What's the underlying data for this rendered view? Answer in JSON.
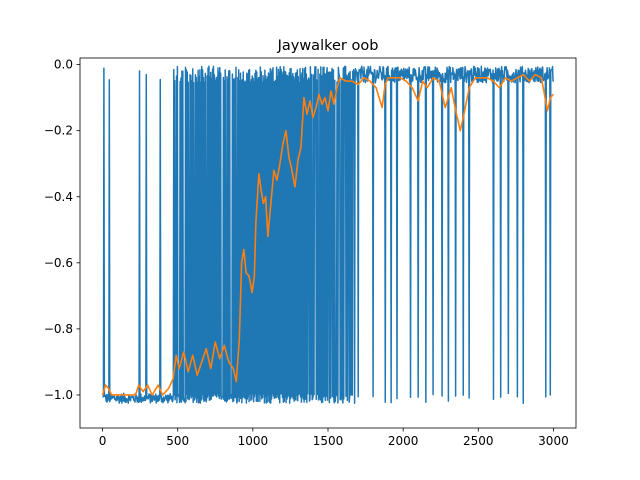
{
  "chart_data": {
    "type": "line",
    "title": "Jaywalker oob",
    "xlabel": "",
    "ylabel": "",
    "xlim": [
      -150,
      3150
    ],
    "ylim": [
      -1.1,
      0.02
    ],
    "xticks": [
      0,
      500,
      1000,
      1500,
      2000,
      2500,
      3000
    ],
    "yticks": [
      -1.0,
      -0.8,
      -0.6,
      -0.4,
      -0.2,
      0.0
    ],
    "xtick_labels": [
      "0",
      "500",
      "1000",
      "1500",
      "2000",
      "2500",
      "3000"
    ],
    "ytick_labels": [
      "−1.0",
      "−0.8",
      "−0.6",
      "−0.4",
      "−0.2",
      "0.0"
    ],
    "grid": false,
    "legend": "none",
    "series": [
      {
        "color": "#1f77b4",
        "style": "raw",
        "x_range": [
          0,
          3000
        ],
        "phases": [
          {
            "x_from": 0,
            "x_to": 460,
            "mode": "mostly_low",
            "low": -1.01,
            "high": -0.02
          },
          {
            "x_from": 460,
            "x_to": 1360,
            "mode": "dense_oscillation",
            "low": -1.01,
            "high": -0.02
          },
          {
            "x_from": 1360,
            "x_to": 3000,
            "mode": "mostly_high",
            "low": -1.01,
            "high": -0.02
          }
        ],
        "spikes_up": [
          10,
          45,
          245,
          290,
          385
        ],
        "spikes_down_sample": [
          1380,
          1450,
          1530,
          1600,
          1700,
          1800,
          1880,
          1920,
          1960,
          2050,
          2100,
          2150,
          2200,
          2260,
          2300,
          2350,
          2400,
          2440,
          2600,
          2650,
          2700,
          2760,
          2800,
          2950,
          2980
        ]
      },
      {
        "color": "#ff7f0e",
        "style": "rolling_mean",
        "points": [
          [
            0,
            -1.0
          ],
          [
            20,
            -0.97
          ],
          [
            40,
            -0.98
          ],
          [
            60,
            -1.0
          ],
          [
            100,
            -1.0
          ],
          [
            160,
            -1.0
          ],
          [
            220,
            -1.0
          ],
          [
            240,
            -0.97
          ],
          [
            270,
            -0.99
          ],
          [
            300,
            -0.97
          ],
          [
            330,
            -1.0
          ],
          [
            370,
            -0.97
          ],
          [
            400,
            -1.0
          ],
          [
            440,
            -0.98
          ],
          [
            470,
            -0.95
          ],
          [
            490,
            -0.88
          ],
          [
            510,
            -0.92
          ],
          [
            540,
            -0.87
          ],
          [
            570,
            -0.93
          ],
          [
            600,
            -0.88
          ],
          [
            630,
            -0.94
          ],
          [
            660,
            -0.9
          ],
          [
            690,
            -0.86
          ],
          [
            720,
            -0.92
          ],
          [
            750,
            -0.84
          ],
          [
            780,
            -0.89
          ],
          [
            810,
            -0.85
          ],
          [
            840,
            -0.9
          ],
          [
            870,
            -0.92
          ],
          [
            890,
            -0.96
          ],
          [
            910,
            -0.83
          ],
          [
            925,
            -0.6
          ],
          [
            940,
            -0.56
          ],
          [
            955,
            -0.63
          ],
          [
            975,
            -0.64
          ],
          [
            995,
            -0.69
          ],
          [
            1010,
            -0.64
          ],
          [
            1020,
            -0.48
          ],
          [
            1040,
            -0.33
          ],
          [
            1055,
            -0.38
          ],
          [
            1070,
            -0.42
          ],
          [
            1085,
            -0.4
          ],
          [
            1100,
            -0.52
          ],
          [
            1120,
            -0.42
          ],
          [
            1140,
            -0.32
          ],
          [
            1160,
            -0.35
          ],
          [
            1180,
            -0.3
          ],
          [
            1200,
            -0.24
          ],
          [
            1220,
            -0.2
          ],
          [
            1240,
            -0.28
          ],
          [
            1260,
            -0.32
          ],
          [
            1280,
            -0.37
          ],
          [
            1300,
            -0.29
          ],
          [
            1320,
            -0.25
          ],
          [
            1340,
            -0.1
          ],
          [
            1360,
            -0.15
          ],
          [
            1380,
            -0.11
          ],
          [
            1400,
            -0.16
          ],
          [
            1420,
            -0.13
          ],
          [
            1440,
            -0.09
          ],
          [
            1460,
            -0.12
          ],
          [
            1480,
            -0.1
          ],
          [
            1500,
            -0.14
          ],
          [
            1520,
            -0.08
          ],
          [
            1540,
            -0.12
          ],
          [
            1560,
            -0.07
          ],
          [
            1580,
            -0.04
          ],
          [
            1620,
            -0.05
          ],
          [
            1660,
            -0.05
          ],
          [
            1700,
            -0.06
          ],
          [
            1740,
            -0.04
          ],
          [
            1780,
            -0.05
          ],
          [
            1820,
            -0.07
          ],
          [
            1860,
            -0.13
          ],
          [
            1880,
            -0.06
          ],
          [
            1900,
            -0.04
          ],
          [
            1940,
            -0.04
          ],
          [
            1980,
            -0.04
          ],
          [
            2020,
            -0.05
          ],
          [
            2060,
            -0.07
          ],
          [
            2100,
            -0.11
          ],
          [
            2130,
            -0.05
          ],
          [
            2160,
            -0.07
          ],
          [
            2200,
            -0.04
          ],
          [
            2240,
            -0.05
          ],
          [
            2280,
            -0.13
          ],
          [
            2300,
            -0.1
          ],
          [
            2320,
            -0.07
          ],
          [
            2350,
            -0.14
          ],
          [
            2380,
            -0.2
          ],
          [
            2400,
            -0.16
          ],
          [
            2440,
            -0.07
          ],
          [
            2480,
            -0.04
          ],
          [
            2520,
            -0.04
          ],
          [
            2560,
            -0.04
          ],
          [
            2600,
            -0.05
          ],
          [
            2640,
            -0.07
          ],
          [
            2680,
            -0.04
          ],
          [
            2720,
            -0.05
          ],
          [
            2760,
            -0.04
          ],
          [
            2800,
            -0.03
          ],
          [
            2840,
            -0.05
          ],
          [
            2880,
            -0.03
          ],
          [
            2920,
            -0.04
          ],
          [
            2940,
            -0.09
          ],
          [
            2960,
            -0.14
          ],
          [
            2980,
            -0.1
          ],
          [
            3000,
            -0.09
          ]
        ]
      }
    ]
  }
}
